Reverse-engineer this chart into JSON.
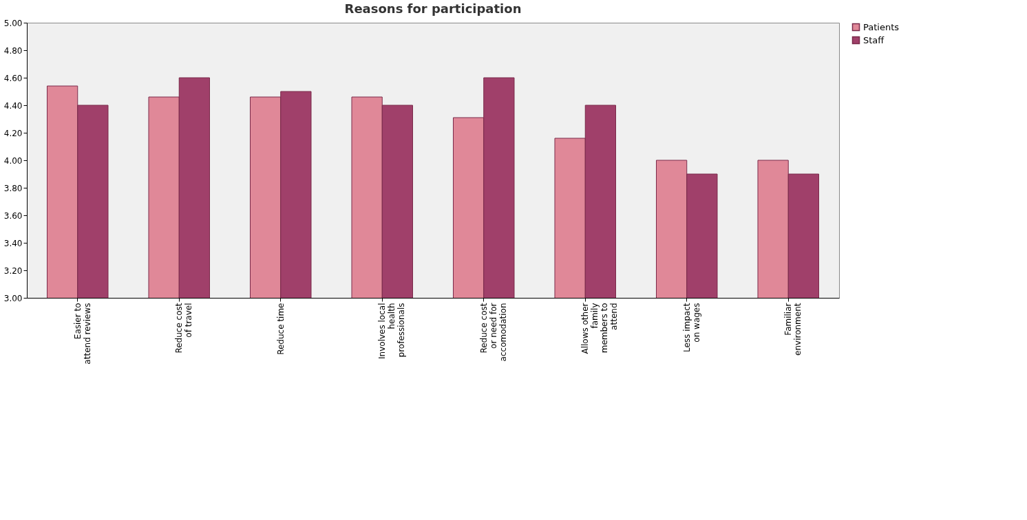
{
  "chart_data": {
    "type": "bar",
    "title": "Reasons for participation",
    "categories": [
      "Easier to\nattend reviews",
      "Reduce cost\nof travel",
      "Reduce time",
      "Involves local\nhealth\nprofessionals",
      "Reduce cost\nor need for\naccomodation",
      "Allows other\nfamily\nmembers to\nattend",
      "Less impact\non wages",
      "Familiar\nenvironment"
    ],
    "series": [
      {
        "name": "Patients",
        "color": "#e08898",
        "values": [
          4.54,
          4.46,
          4.46,
          4.46,
          4.31,
          4.16,
          4.0,
          4.0
        ]
      },
      {
        "name": "Staff",
        "color": "#a0406a",
        "values": [
          4.4,
          4.6,
          4.5,
          4.4,
          4.6,
          4.4,
          3.9,
          3.9
        ]
      }
    ],
    "ylim": [
      3.0,
      5.0
    ],
    "yticks": [
      {
        "value": 3.0,
        "label": "3.00"
      },
      {
        "value": 3.2,
        "label": "3.20"
      },
      {
        "value": 3.4,
        "label": "3.40"
      },
      {
        "value": 3.6,
        "label": "3.60"
      },
      {
        "value": 3.8,
        "label": "3.80"
      },
      {
        "value": 4.0,
        "label": "4.00"
      },
      {
        "value": 4.2,
        "label": "4.20"
      },
      {
        "value": 4.4,
        "label": "4.40"
      },
      {
        "value": 4.6,
        "label": "4.60"
      },
      {
        "value": 4.8,
        "label": "4.80"
      },
      {
        "value": 5.0,
        "label": "5.00"
      }
    ],
    "grid": false,
    "legend": "right"
  }
}
